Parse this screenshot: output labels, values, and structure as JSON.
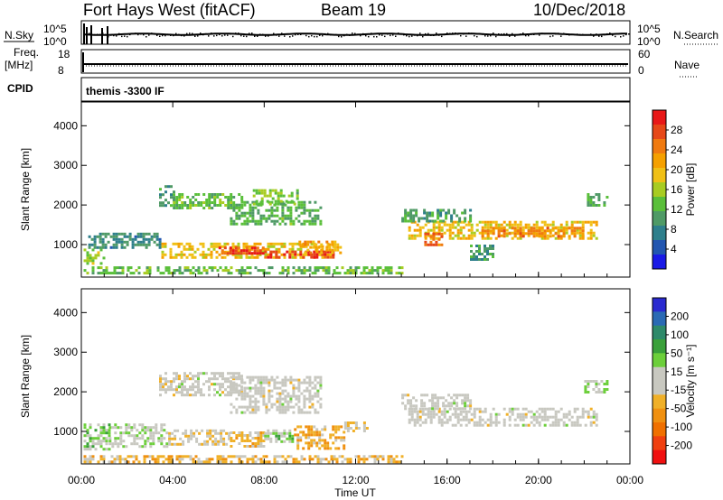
{
  "header": {
    "radar": "Fort Hays West (fitACF)",
    "beam": "Beam 19",
    "date": "10/Dec/2018"
  },
  "strip": {
    "nsky_label": "N.Sky",
    "nsearch_label": "N.Search",
    "freq_label": "Freq.",
    "mhz_label": "[MHz]",
    "nave_label": "Nave",
    "cpid_label": "CPID",
    "cpid_value": "themis -3300 IF",
    "noise_ticks_left": [
      "10^5",
      "10^0"
    ],
    "noise_ticks_right": [
      "10^5",
      "10^0"
    ],
    "freq_ticks": [
      "18",
      "8"
    ],
    "nave_ticks": [
      "60",
      "0"
    ]
  },
  "axes": {
    "xlabel": "Time UT",
    "ylabel": "Slant Range [km]",
    "xticks": [
      "00:00",
      "04:00",
      "08:00",
      "12:00",
      "16:00",
      "20:00",
      "00:00"
    ],
    "yticks": [
      "1000",
      "2000",
      "3000",
      "4000"
    ]
  },
  "colorbars": {
    "power": {
      "label": "Power [dB]",
      "ticks": [
        "4",
        "8",
        "12",
        "16",
        "20",
        "24",
        "28"
      ],
      "colors": [
        "#1a1ae6",
        "#2256b0",
        "#2e7f8c",
        "#4f9a66",
        "#5abf3a",
        "#a8cc22",
        "#f0c016",
        "#f5a000",
        "#f07a10",
        "#e64818",
        "#e81818"
      ]
    },
    "velocity": {
      "label": "Velocity [m s⁻¹]",
      "ticks": [
        "200",
        "100",
        "50",
        "15",
        "-15",
        "-50",
        "-100",
        "-200"
      ],
      "colors": [
        "#2a2ad0",
        "#2a6ab4",
        "#2e8a6a",
        "#3aa03a",
        "#6ccf3a",
        "#c8c8c0",
        "#c8c8c0",
        "#f0b028",
        "#f09010",
        "#f07000",
        "#f04010",
        "#f01010"
      ]
    }
  },
  "chart_data": {
    "type": "heatmap",
    "x_range_hours": [
      0,
      24
    ],
    "y_range_km": [
      180,
      4600
    ],
    "panels": [
      {
        "name": "Power [dB]",
        "clim": [
          0,
          30
        ],
        "regions": [
          {
            "t0": 0.1,
            "t1": 14.0,
            "r0": 300,
            "r1": 450,
            "value": 12
          },
          {
            "t0": 0.1,
            "t1": 1.0,
            "r0": 550,
            "r1": 900,
            "value": 14
          },
          {
            "t0": 0.3,
            "t1": 3.5,
            "r0": 900,
            "r1": 1300,
            "value": 8
          },
          {
            "t0": 3.5,
            "t1": 11.0,
            "r0": 700,
            "r1": 1050,
            "value": 18
          },
          {
            "t0": 6.0,
            "t1": 8.0,
            "r0": 750,
            "r1": 950,
            "value": 26
          },
          {
            "t0": 8.0,
            "t1": 11.0,
            "r0": 650,
            "r1": 850,
            "value": 27
          },
          {
            "t0": 9.5,
            "t1": 11.5,
            "r0": 800,
            "r1": 1100,
            "value": 20
          },
          {
            "t0": 3.4,
            "t1": 4.0,
            "r0": 2000,
            "r1": 2500,
            "value": 9
          },
          {
            "t0": 4.0,
            "t1": 7.0,
            "r0": 1900,
            "r1": 2300,
            "value": 12
          },
          {
            "t0": 6.5,
            "t1": 10.5,
            "r0": 1500,
            "r1": 2100,
            "value": 11
          },
          {
            "t0": 7.5,
            "t1": 9.5,
            "r0": 2000,
            "r1": 2400,
            "value": 13
          },
          {
            "t0": 14.3,
            "t1": 22.5,
            "r0": 1150,
            "r1": 1600,
            "value": 18
          },
          {
            "t0": 15.0,
            "t1": 15.8,
            "r0": 1000,
            "r1": 1300,
            "value": 24
          },
          {
            "t0": 17.5,
            "t1": 22.0,
            "r0": 1200,
            "r1": 1450,
            "value": 22
          },
          {
            "t0": 14.0,
            "t1": 17.0,
            "r0": 1600,
            "r1": 1900,
            "value": 10
          },
          {
            "t0": 22.0,
            "t1": 23.0,
            "r0": 2000,
            "r1": 2300,
            "value": 11
          },
          {
            "t0": 17.0,
            "t1": 18.0,
            "r0": 600,
            "r1": 1000,
            "value": 9
          }
        ]
      },
      {
        "name": "Velocity [m s-1]",
        "clim": [
          -250,
          250
        ],
        "regions": [
          {
            "t0": 0.1,
            "t1": 14.0,
            "r0": 250,
            "r1": 400,
            "value": -60
          },
          {
            "t0": 0.1,
            "t1": 1.2,
            "r0": 550,
            "r1": 1200,
            "value": 45
          },
          {
            "t0": 1.2,
            "t1": 3.8,
            "r0": 650,
            "r1": 1200,
            "value": 20
          },
          {
            "t0": 3.8,
            "t1": 6.5,
            "r0": 700,
            "r1": 1050,
            "value": -30
          },
          {
            "t0": 6.5,
            "t1": 8.0,
            "r0": 650,
            "r1": 1000,
            "value": -55
          },
          {
            "t0": 8.0,
            "t1": 9.3,
            "r0": 750,
            "r1": 1050,
            "value": 45
          },
          {
            "t0": 9.3,
            "t1": 11.5,
            "r0": 550,
            "r1": 1150,
            "value": -75
          },
          {
            "t0": 11.5,
            "t1": 12.5,
            "r0": 1000,
            "r1": 1250,
            "value": -40
          },
          {
            "t0": 3.4,
            "t1": 7.0,
            "r0": 1900,
            "r1": 2500,
            "value": 0
          },
          {
            "t0": 6.5,
            "t1": 10.5,
            "r0": 1500,
            "r1": 2400,
            "value": 0
          },
          {
            "t0": 14.3,
            "t1": 22.5,
            "r0": 1150,
            "r1": 1600,
            "value": 0
          },
          {
            "t0": 14.0,
            "t1": 17.0,
            "r0": 1600,
            "r1": 1950,
            "value": 0
          },
          {
            "t0": 22.0,
            "t1": 23.0,
            "r0": 2000,
            "r1": 2300,
            "value": 30
          }
        ]
      }
    ]
  }
}
